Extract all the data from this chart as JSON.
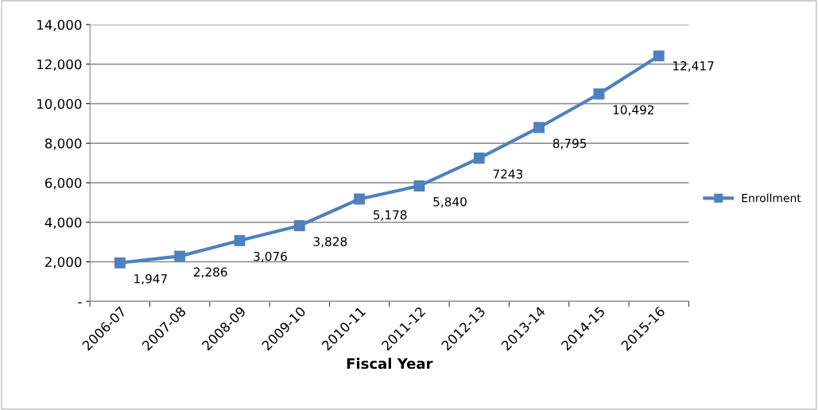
{
  "chart_data": {
    "type": "line",
    "xlabel": "Fiscal Year",
    "categories": [
      "2006-07",
      "2007-08",
      "2008-09",
      "2009-10",
      "2010-11",
      "2011-12",
      "2012-13",
      "2013-14",
      "2014-15",
      "2015-16"
    ],
    "series": [
      {
        "name": "Enrollment",
        "color": "#4f81bd",
        "values": [
          1947,
          2286,
          3076,
          3828,
          5178,
          5840,
          7243,
          8795,
          10492,
          12417
        ],
        "value_labels": [
          "1,947",
          "2,286",
          "3,076",
          "3,828",
          "5,178",
          "5,840",
          "7243",
          "8,795",
          "10,492",
          "12,417"
        ]
      }
    ],
    "ylim": [
      0,
      14000
    ],
    "yticks": [
      {
        "value": 0,
        "label": "-"
      },
      {
        "value": 2000,
        "label": "2,000"
      },
      {
        "value": 4000,
        "label": "4,000"
      },
      {
        "value": 6000,
        "label": "6,000"
      },
      {
        "value": 8000,
        "label": "8,000"
      },
      {
        "value": 10000,
        "label": "10,000"
      },
      {
        "value": 12000,
        "label": "12,000"
      },
      {
        "value": 14000,
        "label": "14,000"
      }
    ],
    "grid": "y",
    "legend": "right",
    "marker": "square",
    "line_style": "solid"
  }
}
